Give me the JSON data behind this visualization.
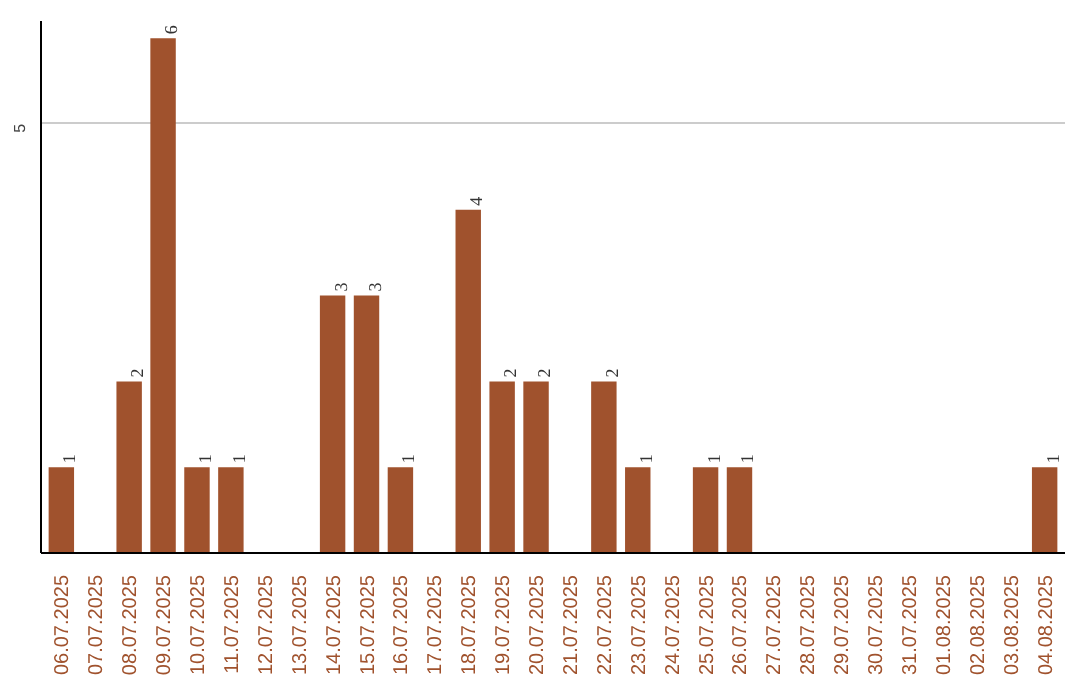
{
  "chart_data": {
    "type": "bar",
    "categories": [
      "06.07.2025",
      "07.07.2025",
      "08.07.2025",
      "09.07.2025",
      "10.07.2025",
      "11.07.2025",
      "12.07.2025",
      "13.07.2025",
      "14.07.2025",
      "15.07.2025",
      "16.07.2025",
      "17.07.2025",
      "18.07.2025",
      "19.07.2025",
      "20.07.2025",
      "21.07.2025",
      "22.07.2025",
      "23.07.2025",
      "24.07.2025",
      "25.07.2025",
      "26.07.2025",
      "27.07.2025",
      "28.07.2025",
      "29.07.2025",
      "30.07.2025",
      "31.07.2025",
      "01.08.2025",
      "02.08.2025",
      "03.08.2025",
      "04.08.2025"
    ],
    "values": [
      1,
      0,
      2,
      6,
      1,
      1,
      0,
      0,
      3,
      3,
      1,
      0,
      4,
      2,
      2,
      0,
      2,
      1,
      0,
      1,
      1,
      0,
      0,
      0,
      0,
      0,
      0,
      0,
      0,
      1
    ],
    "value_labels": [
      "1",
      null,
      "2",
      "6",
      "1",
      "1",
      null,
      null,
      "3",
      "3",
      "1",
      null,
      "4",
      "2",
      "2",
      null,
      "2",
      "1",
      null,
      "1",
      "1",
      null,
      null,
      null,
      null,
      null,
      null,
      null,
      null,
      "1"
    ],
    "color": "#a0522d",
    "ylim": [
      0,
      6.2
    ],
    "yticks": [
      5
    ],
    "grid": "y"
  }
}
